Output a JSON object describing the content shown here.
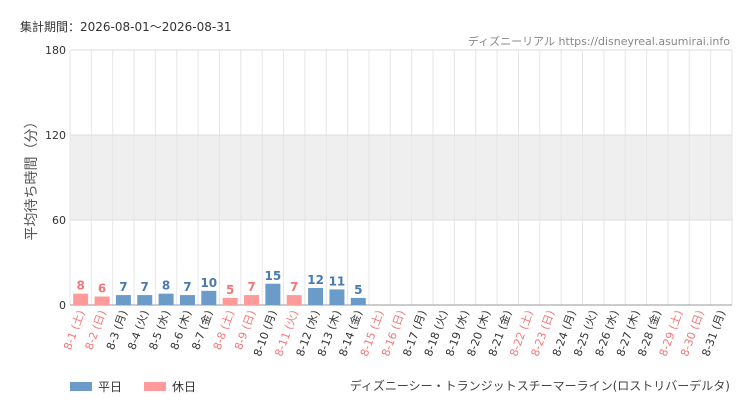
{
  "period_label": "集計期間：2026-08-01～2026-08-31",
  "source_label": "ディズニーリアル https://disneyreal.asumirai.info",
  "attraction_name": "ディズニーシー・トランジットスチーマーライン(ロストリバーデルタ)",
  "legend": {
    "weekday": "平日",
    "holiday": "休日"
  },
  "colors": {
    "weekday": "#6b9bc8",
    "holiday": "#ff9a9a",
    "weekday_text": "#4a7ab0",
    "holiday_text": "#f07878",
    "band": "#efefef"
  },
  "chart_data": {
    "type": "bar",
    "ylabel": "平均待ち時間（分）",
    "ylim": [
      0,
      180
    ],
    "yticks": [
      0,
      60,
      120,
      180
    ],
    "categories": [
      "8-1 (土)",
      "8-2 (日)",
      "8-3 (月)",
      "8-4 (火)",
      "8-5 (水)",
      "8-6 (木)",
      "8-7 (金)",
      "8-8 (土)",
      "8-9 (日)",
      "8-10 (月)",
      "8-11 (火)",
      "8-12 (水)",
      "8-13 (木)",
      "8-14 (金)",
      "8-15 (土)",
      "8-16 (日)",
      "8-17 (月)",
      "8-18 (火)",
      "8-19 (水)",
      "8-20 (木)",
      "8-21 (金)",
      "8-22 (土)",
      "8-23 (日)",
      "8-24 (月)",
      "8-25 (火)",
      "8-26 (水)",
      "8-27 (木)",
      "8-28 (金)",
      "8-29 (土)",
      "8-30 (日)",
      "8-31 (月)"
    ],
    "holiday": [
      true,
      true,
      false,
      false,
      false,
      false,
      false,
      true,
      true,
      false,
      true,
      false,
      false,
      false,
      true,
      true,
      false,
      false,
      false,
      false,
      false,
      true,
      true,
      false,
      false,
      false,
      false,
      false,
      true,
      true,
      false
    ],
    "values": [
      8,
      6,
      7,
      7,
      8,
      7,
      10,
      5,
      7,
      15,
      7,
      12,
      11,
      5,
      null,
      null,
      null,
      null,
      null,
      null,
      null,
      null,
      null,
      null,
      null,
      null,
      null,
      null,
      null,
      null,
      null
    ]
  }
}
